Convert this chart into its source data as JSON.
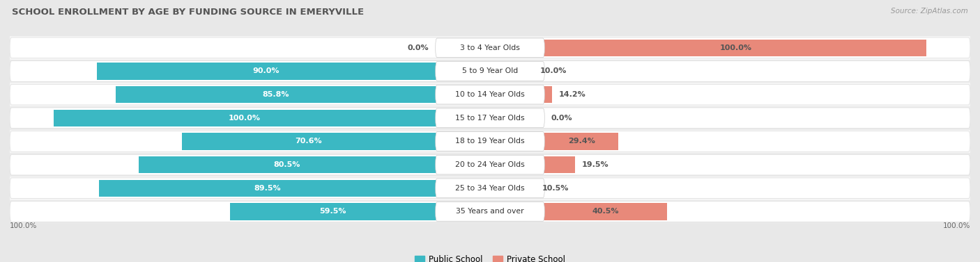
{
  "title": "SCHOOL ENROLLMENT BY AGE BY FUNDING SOURCE IN EMERYVILLE",
  "source": "Source: ZipAtlas.com",
  "categories": [
    "3 to 4 Year Olds",
    "5 to 9 Year Old",
    "10 to 14 Year Olds",
    "15 to 17 Year Olds",
    "18 to 19 Year Olds",
    "20 to 24 Year Olds",
    "25 to 34 Year Olds",
    "35 Years and over"
  ],
  "public_values": [
    0.0,
    90.0,
    85.8,
    100.0,
    70.6,
    80.5,
    89.5,
    59.5
  ],
  "private_values": [
    100.0,
    10.0,
    14.2,
    0.0,
    29.4,
    19.5,
    10.5,
    40.5
  ],
  "public_color": "#3BB8C3",
  "public_color_light": "#A8DDE3",
  "private_color": "#E8897A",
  "private_color_light": "#F2C4BC",
  "background_color": "#E8E8E8",
  "row_bg_odd": "#F5F5F5",
  "row_bg_even": "#EBEBEB",
  "pill_bg": "#FFFFFF",
  "center_label_bg": "#FFFFFF",
  "title_color": "#555555",
  "source_color": "#999999",
  "label_inside_color": "#FFFFFF",
  "label_outside_color": "#555555"
}
